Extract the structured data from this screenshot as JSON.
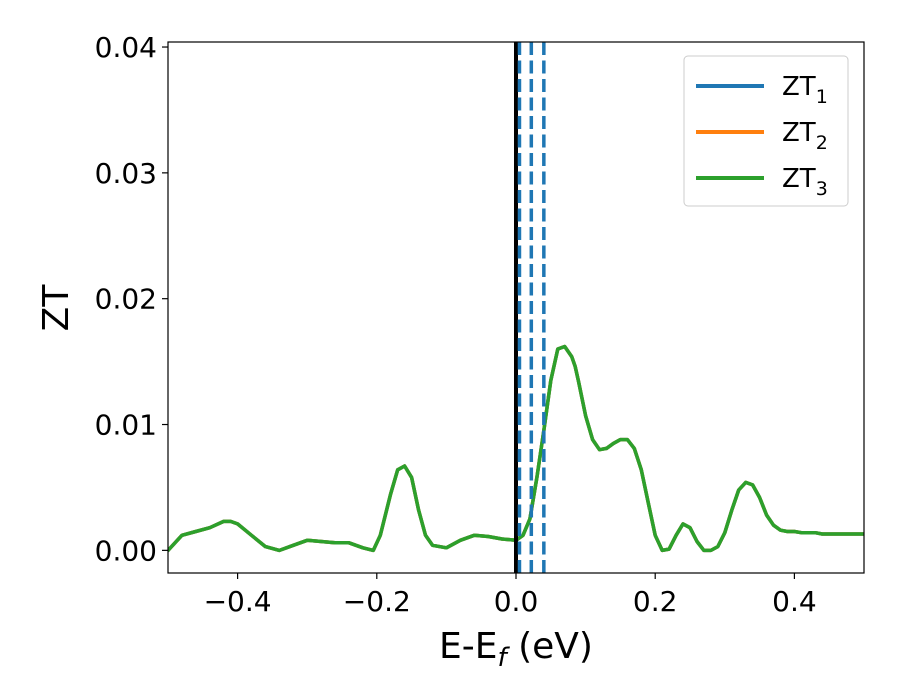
{
  "chart_data": {
    "type": "line",
    "xlabel": "E-E",
    "xlabel_sub": "f",
    "xlabel_unit": " (eV)",
    "ylabel": "ZT",
    "xlim": [
      -0.5,
      0.5
    ],
    "ylim": [
      -0.0018,
      0.0404
    ],
    "x_ticks": [
      -0.4,
      -0.2,
      0.0,
      0.2,
      0.4
    ],
    "x_tick_labels": [
      "−0.4",
      "−0.2",
      "0.0",
      "0.2",
      "0.4"
    ],
    "y_ticks": [
      0.0,
      0.01,
      0.02,
      0.03,
      0.04
    ],
    "y_tick_labels": [
      "0.00",
      "0.01",
      "0.02",
      "0.03",
      "0.04"
    ],
    "grid": false,
    "legend": "top-right",
    "series": [
      {
        "name": "ZT",
        "name_sub": "1",
        "color": "#1f77b4",
        "x": [
          -0.5,
          -0.48,
          -0.46,
          -0.44,
          -0.42,
          -0.41,
          -0.4,
          -0.38,
          -0.36,
          -0.34,
          -0.32,
          -0.3,
          -0.28,
          -0.26,
          -0.24,
          -0.22,
          -0.205,
          -0.195,
          -0.18,
          -0.17,
          -0.16,
          -0.15,
          -0.14,
          -0.13,
          -0.12,
          -0.1,
          -0.08,
          -0.06,
          -0.04,
          -0.02,
          0.0,
          0.01,
          0.02,
          0.03,
          0.04,
          0.05,
          0.06,
          0.07,
          0.08,
          0.085,
          0.09,
          0.1,
          0.11,
          0.12,
          0.13,
          0.14,
          0.15,
          0.16,
          0.17,
          0.18,
          0.19,
          0.2,
          0.21,
          0.22,
          0.23,
          0.24,
          0.25,
          0.26,
          0.27,
          0.28,
          0.29,
          0.3,
          0.31,
          0.32,
          0.33,
          0.34,
          0.35,
          0.36,
          0.37,
          0.38,
          0.39,
          0.395,
          0.4,
          0.41,
          0.42,
          0.43,
          0.44,
          0.45,
          0.46,
          0.48,
          0.5
        ],
        "y": [
          0.0,
          0.0012,
          0.0015,
          0.0018,
          0.0023,
          0.0023,
          0.0021,
          0.0012,
          0.0003,
          0.0,
          0.0004,
          0.0008,
          0.0007,
          0.0006,
          0.0006,
          0.0002,
          0.0,
          0.0012,
          0.0045,
          0.0064,
          0.0067,
          0.0058,
          0.0032,
          0.0012,
          0.0004,
          0.0002,
          0.0008,
          0.0012,
          0.0011,
          0.0009,
          0.0008,
          0.0012,
          0.0025,
          0.0058,
          0.0095,
          0.0135,
          0.016,
          0.0162,
          0.0154,
          0.0146,
          0.0134,
          0.0107,
          0.0088,
          0.008,
          0.0081,
          0.0085,
          0.0088,
          0.0088,
          0.0081,
          0.0064,
          0.0038,
          0.0012,
          0.0,
          0.0001,
          0.0012,
          0.0021,
          0.0018,
          0.0007,
          0.0,
          0.0,
          0.0003,
          0.0014,
          0.0032,
          0.0048,
          0.0054,
          0.0052,
          0.0042,
          0.0028,
          0.002,
          0.0016,
          0.0015,
          0.0015,
          0.0015,
          0.0014,
          0.0014,
          0.0014,
          0.0013,
          0.0013,
          0.0013,
          0.0013,
          0.0013
        ]
      },
      {
        "name": "ZT",
        "name_sub": "2",
        "color": "#ff7f0e",
        "x": [
          -0.5,
          -0.48,
          -0.46,
          -0.44,
          -0.42,
          -0.41,
          -0.4,
          -0.38,
          -0.36,
          -0.34,
          -0.32,
          -0.3,
          -0.28,
          -0.26,
          -0.24,
          -0.22,
          -0.205,
          -0.195,
          -0.18,
          -0.17,
          -0.16,
          -0.15,
          -0.14,
          -0.13,
          -0.12,
          -0.1,
          -0.08,
          -0.06,
          -0.04,
          -0.02,
          0.0,
          0.01,
          0.02,
          0.03,
          0.04,
          0.05,
          0.06,
          0.07,
          0.08,
          0.085,
          0.09,
          0.1,
          0.11,
          0.12,
          0.13,
          0.14,
          0.15,
          0.16,
          0.17,
          0.18,
          0.19,
          0.2,
          0.21,
          0.22,
          0.23,
          0.24,
          0.25,
          0.26,
          0.27,
          0.28,
          0.29,
          0.3,
          0.31,
          0.32,
          0.33,
          0.34,
          0.35,
          0.36,
          0.37,
          0.38,
          0.39,
          0.395,
          0.4,
          0.41,
          0.42,
          0.43,
          0.44,
          0.45,
          0.46,
          0.48,
          0.5
        ],
        "y": [
          0.0,
          0.0012,
          0.0015,
          0.0018,
          0.0023,
          0.0023,
          0.0021,
          0.0012,
          0.0003,
          0.0,
          0.0004,
          0.0008,
          0.0007,
          0.0006,
          0.0006,
          0.0002,
          0.0,
          0.0012,
          0.0045,
          0.0064,
          0.0067,
          0.0058,
          0.0032,
          0.0012,
          0.0004,
          0.0002,
          0.0008,
          0.0012,
          0.0011,
          0.0009,
          0.0008,
          0.0012,
          0.0025,
          0.0058,
          0.0095,
          0.0135,
          0.016,
          0.0162,
          0.0154,
          0.0146,
          0.0134,
          0.0107,
          0.0088,
          0.008,
          0.0081,
          0.0085,
          0.0088,
          0.0088,
          0.0081,
          0.0064,
          0.0038,
          0.0012,
          0.0,
          0.0001,
          0.0012,
          0.0021,
          0.0018,
          0.0007,
          0.0,
          0.0,
          0.0003,
          0.0014,
          0.0032,
          0.0048,
          0.0054,
          0.0052,
          0.0042,
          0.0028,
          0.002,
          0.0016,
          0.0015,
          0.0015,
          0.0015,
          0.0014,
          0.0014,
          0.0014,
          0.0013,
          0.0013,
          0.0013,
          0.0013,
          0.0013
        ]
      },
      {
        "name": "ZT",
        "name_sub": "3",
        "color": "#2ca02c",
        "x": [
          -0.5,
          -0.48,
          -0.46,
          -0.44,
          -0.42,
          -0.41,
          -0.4,
          -0.38,
          -0.36,
          -0.34,
          -0.32,
          -0.3,
          -0.28,
          -0.26,
          -0.24,
          -0.22,
          -0.205,
          -0.195,
          -0.18,
          -0.17,
          -0.16,
          -0.15,
          -0.14,
          -0.13,
          -0.12,
          -0.1,
          -0.08,
          -0.06,
          -0.04,
          -0.02,
          0.0,
          0.01,
          0.02,
          0.03,
          0.04,
          0.05,
          0.06,
          0.07,
          0.08,
          0.085,
          0.09,
          0.1,
          0.11,
          0.12,
          0.13,
          0.14,
          0.15,
          0.16,
          0.17,
          0.18,
          0.19,
          0.2,
          0.21,
          0.22,
          0.23,
          0.24,
          0.25,
          0.26,
          0.27,
          0.28,
          0.29,
          0.3,
          0.31,
          0.32,
          0.33,
          0.34,
          0.35,
          0.36,
          0.37,
          0.38,
          0.39,
          0.395,
          0.4,
          0.41,
          0.42,
          0.43,
          0.44,
          0.45,
          0.46,
          0.48,
          0.5
        ],
        "y": [
          0.0,
          0.0012,
          0.0015,
          0.0018,
          0.0023,
          0.0023,
          0.0021,
          0.0012,
          0.0003,
          0.0,
          0.0004,
          0.0008,
          0.0007,
          0.0006,
          0.0006,
          0.0002,
          0.0,
          0.0012,
          0.0045,
          0.0064,
          0.0067,
          0.0058,
          0.0032,
          0.0012,
          0.0004,
          0.0002,
          0.0008,
          0.0012,
          0.0011,
          0.0009,
          0.0008,
          0.0012,
          0.0025,
          0.0058,
          0.0095,
          0.0135,
          0.016,
          0.0162,
          0.0154,
          0.0146,
          0.0134,
          0.0107,
          0.0088,
          0.008,
          0.0081,
          0.0085,
          0.0088,
          0.0088,
          0.0081,
          0.0064,
          0.0038,
          0.0012,
          0.0,
          0.0001,
          0.0012,
          0.0021,
          0.0018,
          0.0007,
          0.0,
          0.0,
          0.0003,
          0.0014,
          0.0032,
          0.0048,
          0.0054,
          0.0052,
          0.0042,
          0.0028,
          0.002,
          0.0016,
          0.0015,
          0.0015,
          0.0015,
          0.0014,
          0.0014,
          0.0014,
          0.0013,
          0.0013,
          0.0013,
          0.0013,
          0.0013
        ]
      }
    ],
    "vlines": [
      {
        "x": 0.0,
        "color": "#000000",
        "style": "solid"
      },
      {
        "x": 0.005,
        "color": "#1f77b4",
        "style": "dashed"
      },
      {
        "x": 0.022,
        "color": "#1f77b4",
        "style": "dashed"
      },
      {
        "x": 0.04,
        "color": "#1f77b4",
        "style": "dashed"
      }
    ]
  }
}
